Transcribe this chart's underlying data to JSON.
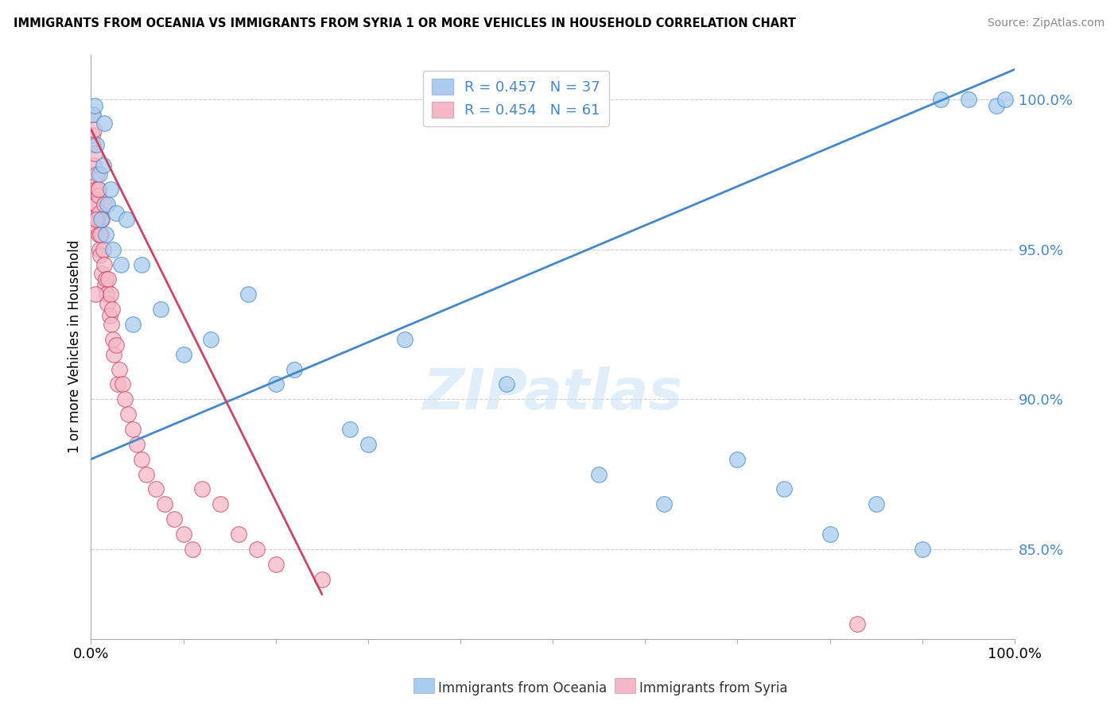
{
  "title": "IMMIGRANTS FROM OCEANIA VS IMMIGRANTS FROM SYRIA 1 OR MORE VEHICLES IN HOUSEHOLD CORRELATION CHART",
  "source": "Source: ZipAtlas.com",
  "ylabel": "1 or more Vehicles in Household",
  "xlim": [
    0.0,
    100.0
  ],
  "ylim": [
    82.0,
    101.5
  ],
  "yticks": [
    85.0,
    90.0,
    95.0,
    100.0
  ],
  "ytick_labels": [
    "85.0%",
    "90.0%",
    "95.0%",
    "100.0%"
  ],
  "color_oceania": "#aaccee",
  "color_syria": "#f4b8c8",
  "trendline_oceania": "#4488cc",
  "trendline_syria": "#cc4466",
  "legend_R_oceania": "R = 0.457",
  "legend_N_oceania": "N = 37",
  "legend_R_syria": "R = 0.454",
  "legend_N_syria": "N = 61",
  "oceania_x": [
    0.2,
    0.4,
    0.6,
    0.9,
    1.1,
    1.3,
    1.4,
    1.6,
    1.8,
    2.1,
    2.4,
    2.7,
    3.2,
    3.8,
    4.5,
    5.5,
    7.5,
    10.0,
    13.0,
    17.0,
    20.0,
    22.0,
    28.0,
    30.0,
    34.0,
    45.0,
    55.0,
    62.0,
    70.0,
    75.0,
    80.0,
    85.0,
    90.0,
    92.0,
    95.0,
    98.0,
    99.0
  ],
  "oceania_y": [
    99.5,
    99.8,
    98.5,
    97.5,
    96.0,
    97.8,
    99.2,
    95.5,
    96.5,
    97.0,
    95.0,
    96.2,
    94.5,
    96.0,
    92.5,
    94.5,
    93.0,
    91.5,
    92.0,
    93.5,
    90.5,
    91.0,
    89.0,
    88.5,
    92.0,
    90.5,
    87.5,
    86.5,
    88.0,
    87.0,
    85.5,
    86.5,
    85.0,
    100.0,
    100.0,
    99.8,
    100.0
  ],
  "syria_x": [
    0.1,
    0.15,
    0.2,
    0.3,
    0.35,
    0.4,
    0.45,
    0.5,
    0.55,
    0.6,
    0.65,
    0.7,
    0.75,
    0.8,
    0.85,
    0.9,
    0.95,
    1.0,
    1.1,
    1.2,
    1.3,
    1.4,
    1.5,
    1.6,
    1.7,
    1.8,
    1.9,
    2.0,
    2.1,
    2.2,
    2.3,
    2.4,
    2.5,
    2.7,
    2.9,
    3.1,
    3.4,
    3.7,
    4.0,
    4.5,
    5.0,
    5.5,
    6.0,
    7.0,
    8.0,
    9.0,
    10.0,
    11.0,
    12.0,
    14.0,
    16.0,
    18.0,
    20.0,
    25.0,
    1.0,
    1.2,
    1.4,
    0.5,
    0.8,
    0.6,
    83.0
  ],
  "syria_y": [
    99.5,
    98.8,
    98.5,
    97.8,
    99.0,
    98.2,
    96.5,
    97.0,
    95.8,
    96.5,
    97.5,
    97.0,
    96.0,
    95.5,
    96.8,
    95.0,
    96.2,
    94.8,
    95.5,
    94.2,
    95.0,
    94.5,
    93.8,
    94.0,
    93.5,
    93.2,
    94.0,
    92.8,
    93.5,
    92.5,
    93.0,
    92.0,
    91.5,
    91.8,
    90.5,
    91.0,
    90.5,
    90.0,
    89.5,
    89.0,
    88.5,
    88.0,
    87.5,
    87.0,
    86.5,
    86.0,
    85.5,
    85.0,
    87.0,
    86.5,
    85.5,
    85.0,
    84.5,
    84.0,
    95.5,
    96.0,
    96.5,
    93.5,
    97.0,
    96.0,
    82.5
  ],
  "oceania_trendline_x0": 0.0,
  "oceania_trendline_y0": 88.0,
  "oceania_trendline_x1": 100.0,
  "oceania_trendline_y1": 101.0,
  "syria_trendline_x0": 0.0,
  "syria_trendline_y0": 99.0,
  "syria_trendline_x1": 25.0,
  "syria_trendline_y1": 83.5
}
